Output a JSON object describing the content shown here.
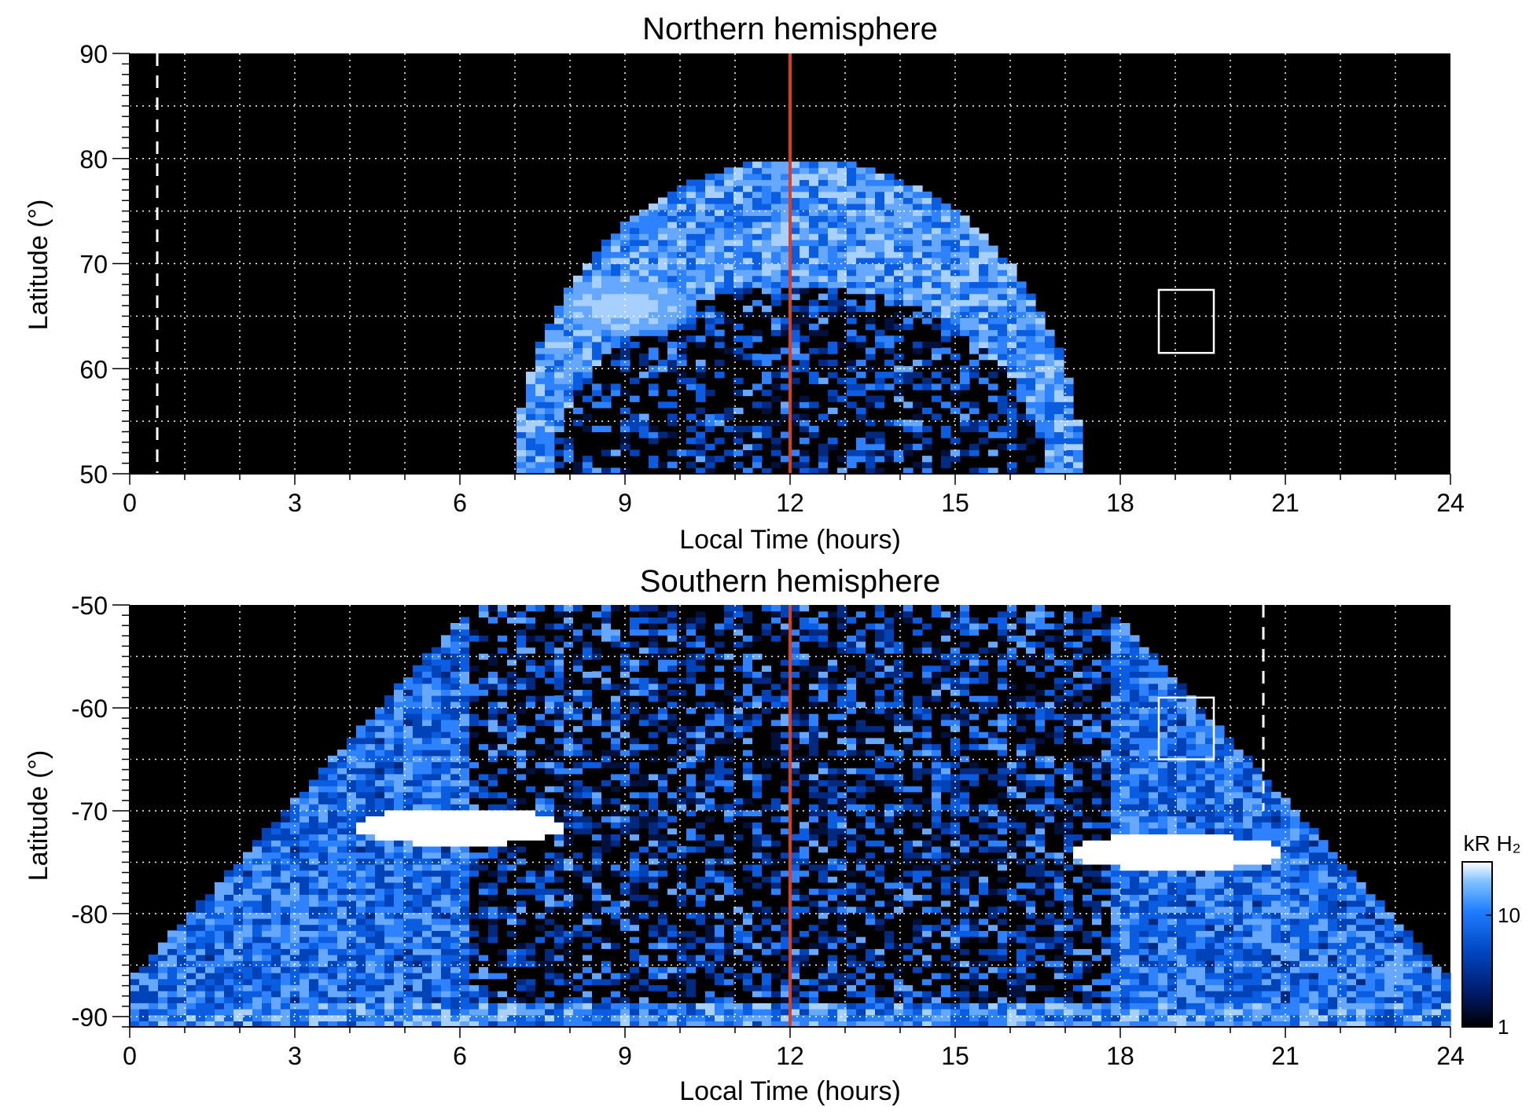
{
  "chart_data": [
    {
      "type": "heatmap",
      "title": "Northern hemisphere",
      "xlabel": "Local Time (hours)",
      "ylabel": "Latitude (°)",
      "xlim": [
        0,
        24
      ],
      "ylim": [
        50,
        90
      ],
      "xticks": [
        "0",
        "3",
        "6",
        "9",
        "12",
        "15",
        "18",
        "21",
        "24"
      ],
      "yticks": [
        "50",
        "60",
        "70",
        "80",
        "90"
      ],
      "grid": true,
      "background": "#000000",
      "noon_line_x": 12,
      "noon_line_color": "#d9401f",
      "dashed_line_x": 0.5,
      "dashed_line_color": "#ffffff",
      "box": {
        "x0": 18.7,
        "x1": 19.7,
        "y0": 61.5,
        "y1": 67.5
      },
      "emission_region": {
        "inner_edge_lat": 68,
        "outer_edge_lat": 80,
        "lt_min": 7,
        "lt_max": 17.3,
        "bright_spot": {
          "lt": 9,
          "lat": 66
        }
      }
    },
    {
      "type": "heatmap",
      "title": "Southern hemisphere",
      "xlabel": "Local Time (hours)",
      "ylabel": "Latitude (°)",
      "xlim": [
        0,
        24
      ],
      "ylim": [
        -91,
        -50
      ],
      "xticks": [
        "0",
        "3",
        "6",
        "9",
        "12",
        "15",
        "18",
        "21",
        "24"
      ],
      "yticks": [
        "-90",
        "-80",
        "-70",
        "-60",
        "-50"
      ],
      "grid": true,
      "background": "#000000",
      "noon_line_x": 12,
      "noon_line_color": "#d9401f",
      "dashed_line_x": 20.6,
      "dashed_line_color": "#ffffff",
      "box": {
        "x0": 18.7,
        "x1": 19.7,
        "y0": -65,
        "y1": -59
      },
      "bright_spots": [
        {
          "lt": 6,
          "lat": -71.5
        },
        {
          "lt": 19,
          "lat": -74
        }
      ],
      "colorbar": {
        "label": "kR H₂",
        "ticks": [
          "1",
          "10"
        ],
        "scale": "log",
        "range": [
          1,
          30
        ],
        "colors": [
          "#000000",
          "#001a66",
          "#0045c0",
          "#1e7dff",
          "#7fc1ff",
          "#ffffff"
        ]
      }
    }
  ]
}
